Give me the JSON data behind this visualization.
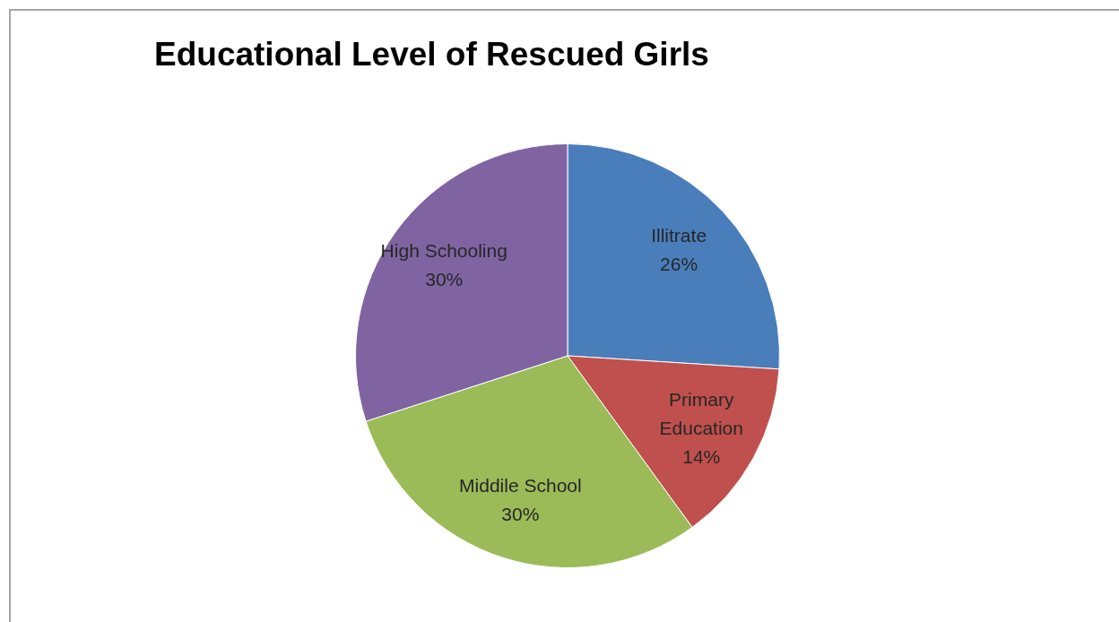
{
  "chart_data": {
    "type": "pie",
    "title": "Educational Level of Rescued Girls",
    "categories": [
      "Illitrate",
      "Primary Education",
      "Middile School",
      "High Schooling"
    ],
    "values": [
      26,
      14,
      30,
      30
    ],
    "colors": [
      "#4a7ebb",
      "#c0504d",
      "#9bbb59",
      "#8064a2"
    ],
    "value_labels": [
      "26%",
      "14%",
      "30%",
      "30%"
    ],
    "legend": false
  }
}
